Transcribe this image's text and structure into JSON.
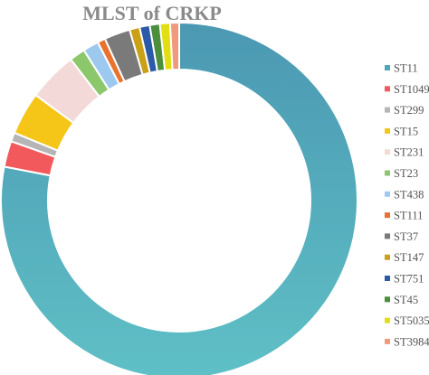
{
  "chart_data": {
    "type": "pie",
    "variant": "donut",
    "title": "MLST of CRKP",
    "legend_position": "right",
    "labels": [
      "ST11",
      "ST1049",
      "ST299",
      "ST15",
      "ST231",
      "ST23",
      "ST438",
      "ST111",
      "ST37",
      "ST147",
      "ST751",
      "ST45",
      "ST5035",
      "ST3984"
    ],
    "values": [
      76.5,
      2.3,
      0.8,
      3.8,
      4.4,
      1.4,
      1.4,
      0.7,
      2.3,
      0.9,
      0.9,
      0.9,
      0.9,
      0.8
    ],
    "colors": [
      "#4fa8ba",
      "#f2595c",
      "#b5b5b5",
      "#f5c518",
      "#f4d9d9",
      "#8cc76b",
      "#9ec9ef",
      "#e8732e",
      "#7a7a7a",
      "#caa116",
      "#2a5aa8",
      "#4b8f3c",
      "#e3de12",
      "#f09a7c"
    ]
  }
}
